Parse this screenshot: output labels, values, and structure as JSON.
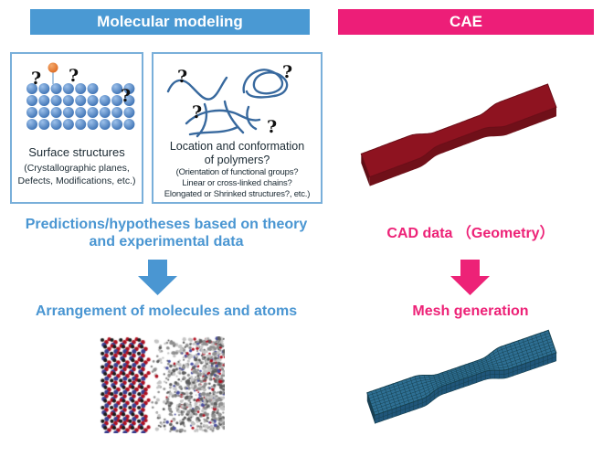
{
  "header_left": {
    "label": "Molecular modeling",
    "bg": "#4a99d3"
  },
  "header_right": {
    "label": "CAE",
    "bg": "#ed1e78"
  },
  "left_column": {
    "text_color": "#4a96d2",
    "arrow_color": "#4a96d2",
    "box1": {
      "caption": "Surface structures",
      "subcaption_lines": [
        "(Crystallographic planes,",
        "Defects, Modifications, etc.)"
      ],
      "question_mark": "?",
      "atom_color": "#4e86c6",
      "adatom_color": "#e8793a"
    },
    "box2": {
      "caption_lines": [
        "Location and conformation",
        "of polymers?"
      ],
      "subcaption_lines": [
        "(Orientation of functional groups?",
        "Linear or cross-linked chains?",
        "Elongated or Shrinked structures?, etc.)"
      ],
      "question_mark": "?",
      "chain_color": "#38699e"
    },
    "step1_lines": [
      "Predictions/hypotheses based on theory",
      "and experimental data"
    ],
    "step2": "Arrangement of molecules and atoms",
    "molecule_image": {
      "crystal_atom_colors": [
        "#b01020",
        "#3a3f8f",
        "#1a1a1a"
      ],
      "amorphous_colors": [
        "#8f8f8f",
        "#c4c4c4",
        "#5c5c5c",
        "#b01020",
        "#4a4f9f"
      ]
    }
  },
  "right_column": {
    "text_color": "#ed2277",
    "arrow_color": "#ed2277",
    "step1": "CAD data （Geometry）",
    "step2": "Mesh generation",
    "cad_model": {
      "top": "#8e1320",
      "side": "#701019",
      "cap": "#5f0d15",
      "edge": "#6b0e18",
      "grid": "none"
    },
    "mesh_model": {
      "top": "#2e6f93",
      "side": "#20567a",
      "cap": "#183f52",
      "edge": "#16404f",
      "grid": "#16404f"
    }
  }
}
